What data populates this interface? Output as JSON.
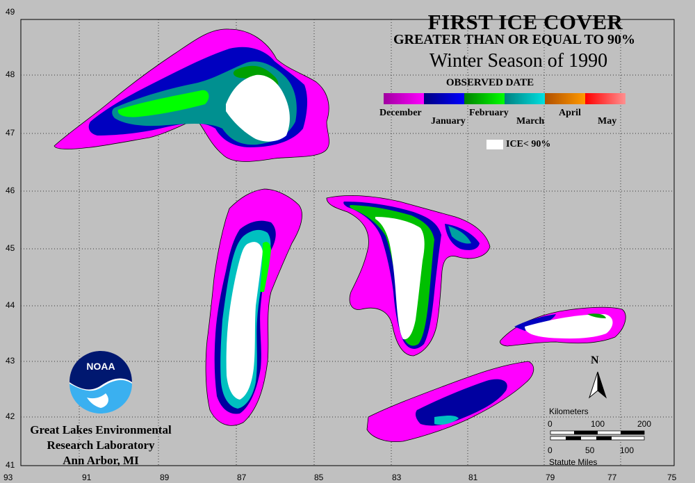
{
  "title": "FIRST ICE COVER",
  "subtitle": "GREATER THAN OR EQUAL TO 90%",
  "season": "Winter Season of 1990",
  "legend": {
    "heading": "OBSERVED DATE",
    "months": [
      {
        "label": "December",
        "colors": [
          "#a000a0",
          "#ff00ff"
        ]
      },
      {
        "label": "January",
        "colors": [
          "#000080",
          "#0000ff"
        ]
      },
      {
        "label": "February",
        "colors": [
          "#008000",
          "#00ff00"
        ]
      },
      {
        "label": "March",
        "colors": [
          "#008080",
          "#00e0e0"
        ]
      },
      {
        "label": "April",
        "colors": [
          "#b05000",
          "#ff9900"
        ]
      },
      {
        "label": "May",
        "colors": [
          "#ff0000",
          "#ff9090"
        ]
      }
    ],
    "ice_label": "ICE< 90%",
    "ice_color": "#ffffff"
  },
  "latitudes": [
    "49",
    "48",
    "47",
    "46",
    "45",
    "44",
    "43",
    "42",
    "41"
  ],
  "longitudes": [
    "93",
    "91",
    "89",
    "87",
    "85",
    "83",
    "81",
    "79",
    "77",
    "75"
  ],
  "scale": {
    "km_label": "Kilometers",
    "km_ticks": [
      "0",
      "100",
      "200"
    ],
    "mi_ticks": [
      "0",
      "50",
      "100"
    ],
    "mi_label": "Statute Miles"
  },
  "north_label": "N",
  "logo_text": "NOAA",
  "lab": {
    "line1": "Great Lakes Environmental",
    "line2": "Research Laboratory",
    "line3": "Ann Arbor, MI"
  },
  "colors": {
    "background": "#c0c0c0",
    "land_border": "#000000"
  }
}
